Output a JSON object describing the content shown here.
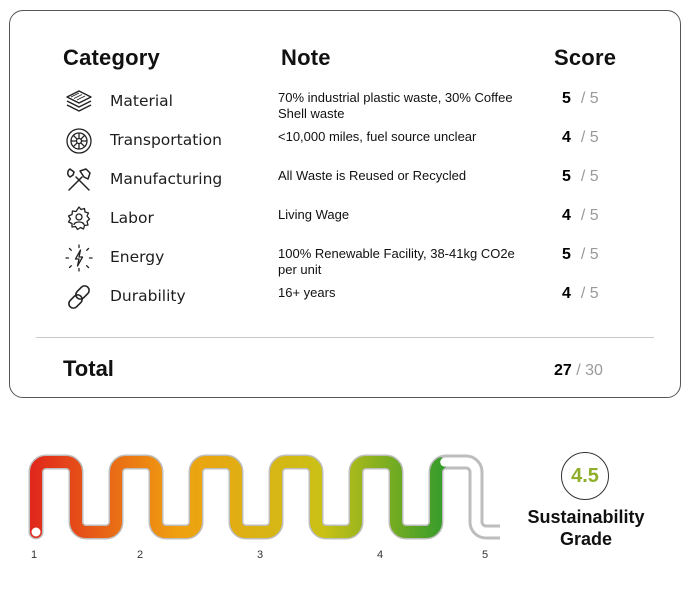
{
  "table": {
    "headers": {
      "category": "Category",
      "note": "Note",
      "score": "Score"
    },
    "rows": [
      {
        "icon": "layers-icon",
        "category": "Material",
        "note": "70% industrial plastic waste, 30% Coffee Shell waste",
        "score": "5",
        "max": "/ 5"
      },
      {
        "icon": "tire-icon",
        "category": "Transportation",
        "note": "<10,000 miles, fuel source unclear",
        "score": "4",
        "max": "/ 5"
      },
      {
        "icon": "tools-icon",
        "category": "Manufacturing",
        "note": "All Waste is Reused or Recycled",
        "score": "5",
        "max": "/ 5"
      },
      {
        "icon": "worker-gear-icon",
        "category": "Labor",
        "note": "Living Wage",
        "score": "4",
        "max": "/ 5"
      },
      {
        "icon": "energy-bolt-icon",
        "category": "Energy",
        "note": "100% Renewable Facility, 38-41kg CO2e per unit",
        "score": "5",
        "max": "/ 5"
      },
      {
        "icon": "chain-link-icon",
        "category": "Durability",
        "note": "16+ years",
        "score": "4",
        "max": "/ 5"
      }
    ],
    "total": {
      "label": "Total",
      "score": "27",
      "max": "/ 30"
    }
  },
  "meter": {
    "labels": [
      "1",
      "2",
      "3",
      "4",
      "5"
    ],
    "min": 1,
    "max": 5,
    "value": 4.5,
    "colors": {
      "low": "#e0261c",
      "mid": "#f0a010",
      "high": "#c9c116",
      "top": "#2f9a2c",
      "empty": "#bdbdbd"
    }
  },
  "grade": {
    "value": "4.5",
    "caption_line1": "Sustainability",
    "caption_line2": "Grade",
    "color": "#8fae2a"
  }
}
